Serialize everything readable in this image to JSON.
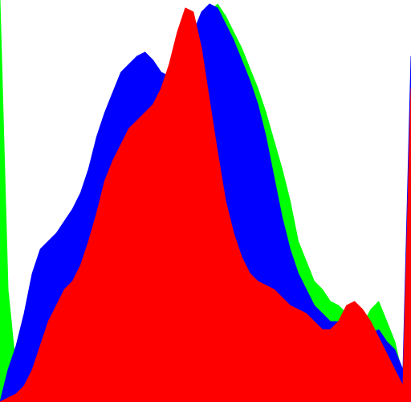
{
  "chart_data": {
    "type": "area",
    "title": "",
    "xlabel": "",
    "ylabel": "",
    "xlim": [
      0,
      255
    ],
    "ylim": [
      0,
      100
    ],
    "grid": false,
    "legend": "none",
    "x": [
      0,
      5,
      10,
      15,
      20,
      25,
      30,
      35,
      40,
      45,
      50,
      55,
      60,
      65,
      70,
      75,
      80,
      85,
      90,
      95,
      100,
      105,
      110,
      115,
      120,
      125,
      130,
      135,
      140,
      145,
      150,
      155,
      160,
      165,
      170,
      175,
      180,
      185,
      190,
      195,
      200,
      205,
      210,
      215,
      220,
      225,
      230,
      235,
      240,
      245,
      250,
      255
    ],
    "series": [
      {
        "name": "",
        "color": "#00ff00",
        "values": [
          100,
          28,
          8,
          6,
          5,
          6,
          9,
          13,
          16,
          20,
          25,
          30,
          33,
          36,
          40,
          44,
          48,
          52,
          55,
          58,
          63,
          70,
          76,
          82,
          88,
          93,
          97,
          99,
          96,
          92,
          88,
          83,
          78,
          72,
          65,
          58,
          50,
          40,
          35,
          30,
          28,
          25,
          24,
          22,
          20,
          19,
          23,
          25,
          20,
          15,
          6,
          0
        ]
      },
      {
        "name": "",
        "color": "#0000ff",
        "values": [
          0,
          8,
          14,
          22,
          32,
          38,
          40,
          42,
          45,
          48,
          52,
          58,
          66,
          72,
          77,
          82,
          84,
          86,
          87,
          85,
          82,
          81,
          83,
          87,
          92,
          97,
          99,
          98,
          94,
          90,
          85,
          80,
          74,
          66,
          56,
          46,
          38,
          32,
          28,
          24,
          22,
          20,
          20,
          19,
          18,
          17,
          17,
          18,
          15,
          13,
          8,
          86
        ]
      },
      {
        "name": "",
        "color": "#ff0000",
        "values": [
          0,
          1,
          2,
          4,
          8,
          14,
          20,
          24,
          28,
          30,
          34,
          40,
          47,
          55,
          60,
          64,
          68,
          70,
          72,
          74,
          78,
          84,
          92,
          98,
          97,
          88,
          75,
          62,
          50,
          42,
          36,
          32,
          30,
          29,
          28,
          26,
          24,
          23,
          22,
          20,
          18,
          18,
          20,
          24,
          25,
          23,
          20,
          16,
          12,
          8,
          4,
          78
        ]
      }
    ]
  }
}
